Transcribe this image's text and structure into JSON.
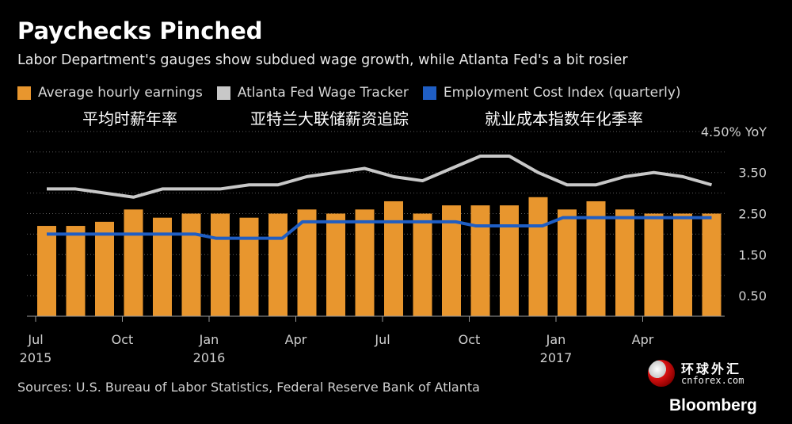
{
  "header": {
    "title": "Paychecks Pinched",
    "subtitle": "Labor Department's gauges show subdued wage growth, while Atlanta Fed's a bit rosier"
  },
  "legend": [
    {
      "label": "Average hourly earnings",
      "color": "#e8962e"
    },
    {
      "label": "Atlanta Fed Wage Tracker",
      "color": "#c8c8c8"
    },
    {
      "label": "Employment Cost Index (quarterly)",
      "color": "#1f5ec4"
    }
  ],
  "cn_labels": [
    "平均时薪年率",
    "亚特兰大联储薪资追踪",
    "就业成本指数年化季率"
  ],
  "source": "Sources: U.S. Bureau of Labor Statistics, Federal Reserve Bank of Atlanta",
  "watermark": {
    "cn": "环球外汇",
    "en": "cnforex.com"
  },
  "brand": "Bloomberg",
  "chart_data": {
    "type": "bar",
    "y_unit_label": "4.50% YoY",
    "ylim": [
      0,
      4.5
    ],
    "yticks": [
      "0.50",
      "1.50",
      "2.50",
      "3.50"
    ],
    "ytick_values": [
      0.5,
      1.5,
      2.5,
      3.5
    ],
    "grid": true,
    "categories": [
      "2015-07",
      "2015-08",
      "2015-09",
      "2015-10",
      "2015-11",
      "2015-12",
      "2016-01",
      "2016-02",
      "2016-03",
      "2016-04",
      "2016-05",
      "2016-06",
      "2016-07",
      "2016-08",
      "2016-09",
      "2016-10",
      "2016-11",
      "2016-12",
      "2017-01",
      "2017-02",
      "2017-03",
      "2017-04",
      "2017-05",
      "2017-06"
    ],
    "xticks": [
      {
        "index": 0,
        "month": "Jul",
        "year": "2015"
      },
      {
        "index": 3,
        "month": "Oct",
        "year": ""
      },
      {
        "index": 6,
        "month": "Jan",
        "year": "2016"
      },
      {
        "index": 9,
        "month": "Apr",
        "year": ""
      },
      {
        "index": 12,
        "month": "Jul",
        "year": ""
      },
      {
        "index": 15,
        "month": "Oct",
        "year": ""
      },
      {
        "index": 18,
        "month": "Jan",
        "year": "2017"
      },
      {
        "index": 21,
        "month": "Apr",
        "year": ""
      }
    ],
    "series": [
      {
        "name": "Average hourly earnings",
        "type": "bar",
        "color": "#e8962e",
        "values": [
          2.2,
          2.2,
          2.3,
          2.6,
          2.4,
          2.5,
          2.5,
          2.4,
          2.5,
          2.6,
          2.5,
          2.6,
          2.8,
          2.5,
          2.7,
          2.7,
          2.7,
          2.9,
          2.6,
          2.8,
          2.6,
          2.5,
          2.5,
          2.5
        ]
      },
      {
        "name": "Atlanta Fed Wage Tracker",
        "type": "line",
        "color": "#c8c8c8",
        "values": [
          3.1,
          3.1,
          3.0,
          2.9,
          3.1,
          3.1,
          3.1,
          3.2,
          3.2,
          3.4,
          3.5,
          3.6,
          3.4,
          3.3,
          3.6,
          3.9,
          3.9,
          3.5,
          3.2,
          3.2,
          3.4,
          3.5,
          3.4,
          3.2
        ]
      },
      {
        "name": "Employment Cost Index (quarterly)",
        "type": "step",
        "color": "#1f5ec4",
        "values": [
          2.0,
          2.0,
          2.0,
          2.0,
          2.0,
          2.0,
          1.9,
          1.9,
          1.9,
          2.3,
          2.3,
          2.3,
          2.3,
          2.3,
          2.3,
          2.2,
          2.2,
          2.2,
          2.4,
          2.4,
          2.4,
          2.4,
          2.4,
          2.4
        ]
      }
    ]
  }
}
